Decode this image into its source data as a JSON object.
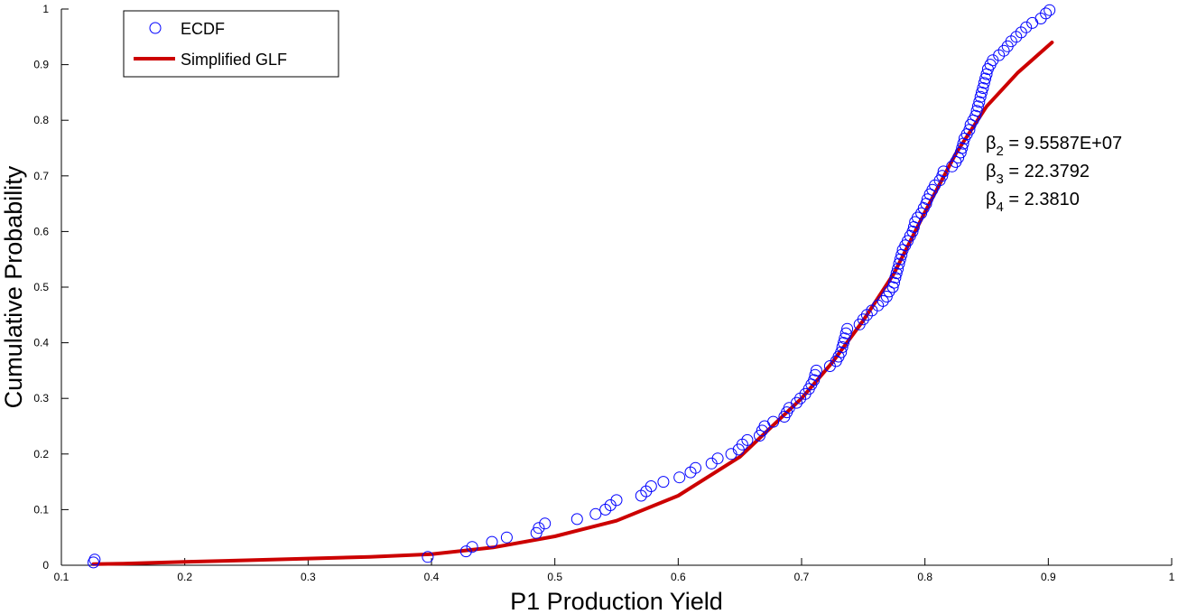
{
  "chart_data": {
    "type": "scatter",
    "xlabel": "P1 Production Yield",
    "ylabel": "Cumulative Probability",
    "xlim": [
      0.1,
      1
    ],
    "ylim": [
      0,
      1
    ],
    "xticks": [
      "0.1",
      "0.2",
      "0.3",
      "0.4",
      "0.5",
      "0.6",
      "0.7",
      "0.8",
      "0.9",
      "1"
    ],
    "yticks": [
      "0",
      "0.1",
      "0.2",
      "0.3",
      "0.4",
      "0.5",
      "0.6",
      "0.7",
      "0.8",
      "0.9",
      "1"
    ],
    "grid": false,
    "legend_position": "top-left",
    "legend": {
      "ecdf_label": "ECDF",
      "glf_label": "Simplified GLF"
    },
    "colors": {
      "ecdf": "#0000ff",
      "glf": "#cc0000"
    },
    "annotation": {
      "b2_symbol": "β",
      "b2_sub": "2",
      "b2_value": " = 9.5587E+07",
      "b3_symbol": "β",
      "b3_sub": "3",
      "b3_value": " = 22.3792",
      "b4_symbol": "β",
      "b4_sub": "4",
      "b4_value": " = 2.3810"
    },
    "series": [
      {
        "name": "ECDF",
        "style": "markers",
        "points": [
          [
            0.126,
            0.005
          ],
          [
            0.127,
            0.01
          ],
          [
            0.397,
            0.015
          ],
          [
            0.428,
            0.025
          ],
          [
            0.433,
            0.033
          ],
          [
            0.449,
            0.042
          ],
          [
            0.461,
            0.05
          ],
          [
            0.485,
            0.058
          ],
          [
            0.487,
            0.067
          ],
          [
            0.492,
            0.075
          ],
          [
            0.518,
            0.083
          ],
          [
            0.533,
            0.092
          ],
          [
            0.541,
            0.1
          ],
          [
            0.545,
            0.108
          ],
          [
            0.55,
            0.117
          ],
          [
            0.57,
            0.125
          ],
          [
            0.574,
            0.133
          ],
          [
            0.578,
            0.142
          ],
          [
            0.588,
            0.15
          ],
          [
            0.601,
            0.158
          ],
          [
            0.61,
            0.167
          ],
          [
            0.614,
            0.175
          ],
          [
            0.627,
            0.183
          ],
          [
            0.632,
            0.192
          ],
          [
            0.643,
            0.2
          ],
          [
            0.649,
            0.208
          ],
          [
            0.652,
            0.217
          ],
          [
            0.656,
            0.225
          ],
          [
            0.666,
            0.233
          ],
          [
            0.668,
            0.242
          ],
          [
            0.67,
            0.25
          ],
          [
            0.677,
            0.258
          ],
          [
            0.686,
            0.267
          ],
          [
            0.688,
            0.275
          ],
          [
            0.69,
            0.283
          ],
          [
            0.696,
            0.292
          ],
          [
            0.699,
            0.3
          ],
          [
            0.703,
            0.308
          ],
          [
            0.706,
            0.317
          ],
          [
            0.708,
            0.325
          ],
          [
            0.71,
            0.333
          ],
          [
            0.711,
            0.342
          ],
          [
            0.712,
            0.35
          ],
          [
            0.723,
            0.358
          ],
          [
            0.728,
            0.367
          ],
          [
            0.73,
            0.375
          ],
          [
            0.732,
            0.383
          ],
          [
            0.733,
            0.392
          ],
          [
            0.734,
            0.4
          ],
          [
            0.735,
            0.408
          ],
          [
            0.736,
            0.417
          ],
          [
            0.737,
            0.425
          ],
          [
            0.747,
            0.433
          ],
          [
            0.75,
            0.442
          ],
          [
            0.753,
            0.45
          ],
          [
            0.757,
            0.458
          ],
          [
            0.762,
            0.467
          ],
          [
            0.766,
            0.475
          ],
          [
            0.769,
            0.483
          ],
          [
            0.771,
            0.492
          ],
          [
            0.774,
            0.5
          ],
          [
            0.775,
            0.508
          ],
          [
            0.776,
            0.517
          ],
          [
            0.777,
            0.525
          ],
          [
            0.778,
            0.533
          ],
          [
            0.779,
            0.542
          ],
          [
            0.78,
            0.55
          ],
          [
            0.781,
            0.558
          ],
          [
            0.782,
            0.567
          ],
          [
            0.784,
            0.575
          ],
          [
            0.786,
            0.583
          ],
          [
            0.788,
            0.592
          ],
          [
            0.79,
            0.6
          ],
          [
            0.791,
            0.608
          ],
          [
            0.792,
            0.617
          ],
          [
            0.794,
            0.625
          ],
          [
            0.797,
            0.633
          ],
          [
            0.799,
            0.642
          ],
          [
            0.801,
            0.65
          ],
          [
            0.802,
            0.658
          ],
          [
            0.804,
            0.667
          ],
          [
            0.806,
            0.675
          ],
          [
            0.808,
            0.683
          ],
          [
            0.812,
            0.692
          ],
          [
            0.814,
            0.7
          ],
          [
            0.815,
            0.708
          ],
          [
            0.822,
            0.717
          ],
          [
            0.825,
            0.725
          ],
          [
            0.827,
            0.733
          ],
          [
            0.829,
            0.742
          ],
          [
            0.83,
            0.75
          ],
          [
            0.831,
            0.758
          ],
          [
            0.832,
            0.767
          ],
          [
            0.834,
            0.775
          ],
          [
            0.836,
            0.783
          ],
          [
            0.837,
            0.792
          ],
          [
            0.839,
            0.8
          ],
          [
            0.841,
            0.808
          ],
          [
            0.842,
            0.817
          ],
          [
            0.843,
            0.825
          ],
          [
            0.844,
            0.833
          ],
          [
            0.845,
            0.842
          ],
          [
            0.846,
            0.85
          ],
          [
            0.847,
            0.858
          ],
          [
            0.848,
            0.867
          ],
          [
            0.849,
            0.875
          ],
          [
            0.85,
            0.883
          ],
          [
            0.851,
            0.892
          ],
          [
            0.853,
            0.9
          ],
          [
            0.855,
            0.908
          ],
          [
            0.86,
            0.917
          ],
          [
            0.864,
            0.925
          ],
          [
            0.867,
            0.933
          ],
          [
            0.87,
            0.942
          ],
          [
            0.874,
            0.95
          ],
          [
            0.878,
            0.958
          ],
          [
            0.882,
            0.967
          ],
          [
            0.887,
            0.975
          ],
          [
            0.894,
            0.983
          ],
          [
            0.898,
            0.992
          ],
          [
            0.901,
            0.998
          ]
        ]
      },
      {
        "name": "Simplified GLF",
        "style": "line",
        "points": [
          [
            0.126,
            0.002
          ],
          [
            0.15,
            0.003
          ],
          [
            0.2,
            0.006
          ],
          [
            0.25,
            0.009
          ],
          [
            0.3,
            0.012
          ],
          [
            0.35,
            0.015
          ],
          [
            0.4,
            0.02
          ],
          [
            0.45,
            0.032
          ],
          [
            0.5,
            0.052
          ],
          [
            0.55,
            0.08
          ],
          [
            0.6,
            0.125
          ],
          [
            0.65,
            0.195
          ],
          [
            0.7,
            0.3
          ],
          [
            0.725,
            0.365
          ],
          [
            0.75,
            0.44
          ],
          [
            0.775,
            0.525
          ],
          [
            0.8,
            0.635
          ],
          [
            0.825,
            0.74
          ],
          [
            0.85,
            0.825
          ],
          [
            0.875,
            0.885
          ],
          [
            0.903,
            0.94
          ]
        ]
      }
    ]
  }
}
